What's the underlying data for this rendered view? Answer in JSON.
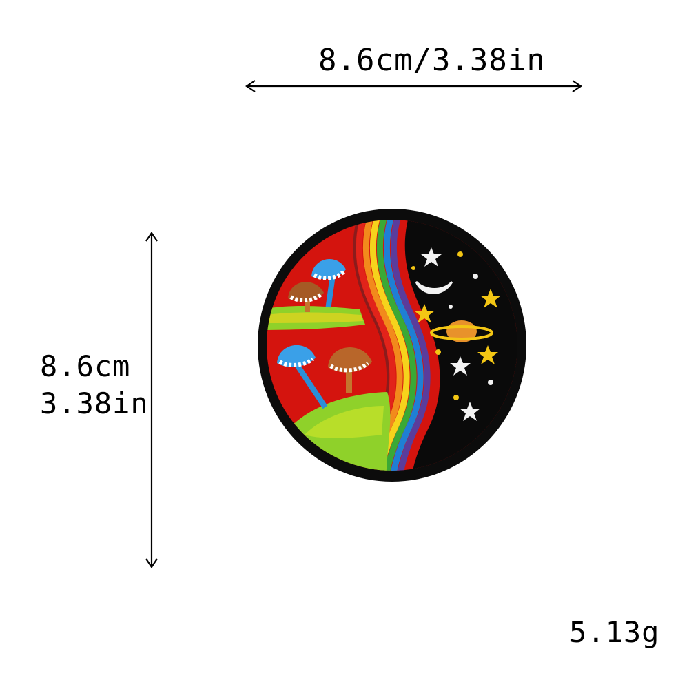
{
  "dimensions": {
    "width_label": "8.6cm/3.38in",
    "height_label_cm": "8.6cm",
    "height_label_in": "3.38in"
  },
  "weight_label": "5.13g",
  "patch": {
    "colors": {
      "border": "#0c0c0c",
      "red_background": "#d4140e",
      "night_sky": "#0a0a0a",
      "grass": "#8fd12a",
      "rainbow": [
        "#e2231a",
        "#f28a1c",
        "#f6d31c",
        "#3aa935",
        "#1f7fd4",
        "#5a3c9c"
      ],
      "star_yellow": "#f3c614",
      "star_white": "#f2f2f2",
      "planet": "#e8922b"
    }
  }
}
